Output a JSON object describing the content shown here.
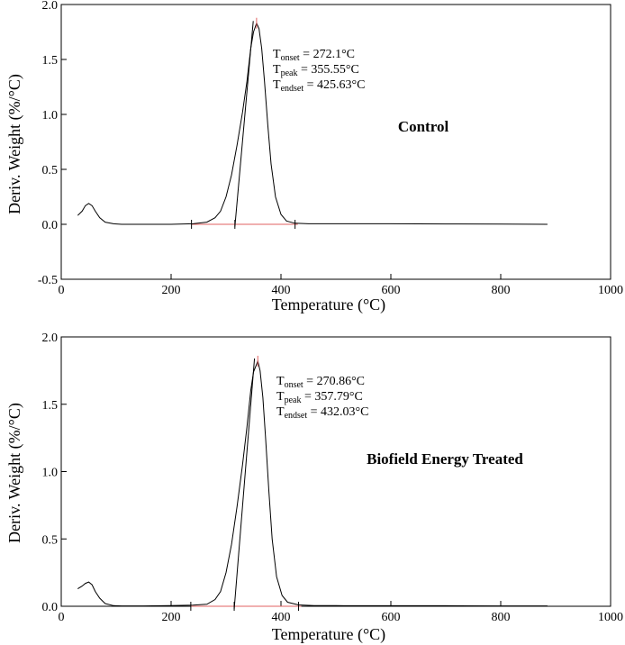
{
  "chart_data": [
    {
      "type": "line",
      "panel": "top",
      "title": "",
      "xlabel": "Temperature (°C)",
      "ylabel": "Deriv. Weight (%/°C)",
      "xlim": [
        0,
        1000
      ],
      "ylim": [
        -0.5,
        2.0
      ],
      "x_ticks": [
        "0",
        "200",
        "400",
        "600",
        "800",
        "1000"
      ],
      "y_ticks": [
        "-0.5",
        "0.0",
        "0.5",
        "1.0",
        "1.5",
        "2.0"
      ],
      "grid": false,
      "label": "Control",
      "annotations": [
        {
          "sym": "T",
          "sub": "onset",
          "text": " = 272.1°C"
        },
        {
          "sym": "T",
          "sub": "peak",
          "text": " = 355.55°C"
        },
        {
          "sym": "T",
          "sub": "endset",
          "text": " = 425.63°C"
        }
      ],
      "onset": 272.1,
      "peak": 355.55,
      "endset": 425.63,
      "series": [
        {
          "x": [
            30,
            38,
            44,
            50,
            56,
            62,
            70,
            80,
            95,
            110,
            150,
            200,
            240,
            265,
            280,
            290,
            300,
            310,
            320,
            330,
            338,
            345,
            350,
            355.55,
            360,
            365,
            370,
            376,
            382,
            390,
            400,
            410,
            425,
            450,
            500,
            600,
            700,
            800,
            885
          ],
          "y": [
            0.08,
            0.12,
            0.17,
            0.19,
            0.17,
            0.12,
            0.06,
            0.02,
            0.005,
            0.0,
            0.0,
            0.0,
            0.005,
            0.02,
            0.06,
            0.12,
            0.25,
            0.45,
            0.72,
            1.02,
            1.3,
            1.6,
            1.75,
            1.83,
            1.78,
            1.6,
            1.3,
            0.9,
            0.55,
            0.25,
            0.09,
            0.03,
            0.01,
            0.005,
            0.005,
            0.005,
            0.003,
            0.002,
            0.0
          ]
        }
      ]
    },
    {
      "type": "line",
      "panel": "bottom",
      "title": "",
      "xlabel": "Temperature (°C)",
      "ylabel": "Deriv. Weight (%/°C)",
      "xlim": [
        0,
        1000
      ],
      "ylim": [
        0.0,
        2.0
      ],
      "x_ticks": [
        "0",
        "200",
        "400",
        "600",
        "800",
        "1000"
      ],
      "y_ticks": [
        "0.0",
        "0.5",
        "1.0",
        "1.5",
        "2.0"
      ],
      "grid": false,
      "label": "Biofield Energy Treated",
      "annotations": [
        {
          "sym": "T",
          "sub": "onset",
          "text": " = 270.86°C"
        },
        {
          "sym": "T",
          "sub": "peak",
          "text": " = 357.79°C"
        },
        {
          "sym": "T",
          "sub": "endset",
          "text": " = 432.03°C"
        }
      ],
      "onset": 270.86,
      "peak": 357.79,
      "endset": 432.03,
      "series": [
        {
          "x": [
            30,
            38,
            44,
            50,
            56,
            62,
            70,
            80,
            95,
            110,
            150,
            200,
            240,
            265,
            280,
            290,
            300,
            310,
            320,
            330,
            338,
            345,
            350,
            357.79,
            362,
            367,
            372,
            378,
            384,
            392,
            402,
            412,
            432,
            460,
            500,
            600,
            700,
            800,
            885
          ],
          "y": [
            0.13,
            0.15,
            0.17,
            0.18,
            0.16,
            0.11,
            0.06,
            0.02,
            0.005,
            0.003,
            0.003,
            0.005,
            0.008,
            0.015,
            0.05,
            0.11,
            0.25,
            0.46,
            0.74,
            1.05,
            1.33,
            1.6,
            1.74,
            1.82,
            1.75,
            1.55,
            1.25,
            0.85,
            0.5,
            0.22,
            0.08,
            0.03,
            0.01,
            0.005,
            0.005,
            0.004,
            0.004,
            0.003,
            0.003
          ]
        }
      ]
    }
  ]
}
